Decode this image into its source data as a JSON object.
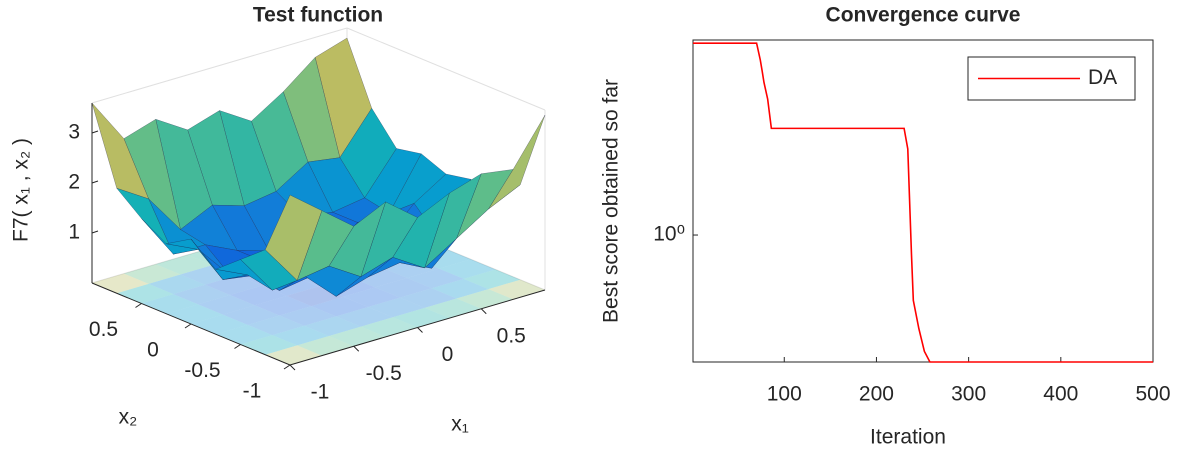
{
  "chart_data": [
    {
      "type": "surface",
      "title": "Test function",
      "zlabel": "F7( x₁ , x₂ )",
      "xlabel": "x₁",
      "ylabel": "x₂",
      "x": [
        -1,
        -0.75,
        -0.5,
        -0.25,
        0,
        0.25,
        0.5,
        0.75,
        1
      ],
      "y": [
        -1,
        -0.75,
        -0.5,
        -0.25,
        0,
        0.25,
        0.5,
        0.75,
        1
      ],
      "z": [
        [
          3.4,
          2.9,
          2.4,
          2.7,
          2.2,
          2.5,
          2.7,
          2.6,
          3.5
        ],
        [
          2.1,
          1.3,
          1.4,
          1.0,
          1.2,
          0.8,
          1.2,
          1.6,
          1.9
        ],
        [
          1.7,
          0.9,
          1.0,
          0.4,
          0.6,
          0.7,
          0.4,
          1.2,
          1.5
        ],
        [
          1.3,
          1.0,
          0.5,
          0.6,
          0.2,
          0.5,
          0.8,
          0.6,
          1.6
        ],
        [
          1.7,
          0.7,
          0.6,
          0.2,
          0.3,
          0.6,
          0.5,
          1.1,
          1.5
        ],
        [
          1.4,
          1.1,
          0.4,
          0.5,
          0.7,
          0.2,
          0.7,
          0.7,
          1.7
        ],
        [
          1.7,
          0.8,
          0.8,
          0.5,
          0.3,
          0.8,
          0.7,
          0.8,
          1.6
        ],
        [
          2.1,
          1.7,
          0.9,
          1.2,
          1.0,
          1.1,
          1.5,
          1.4,
          2.2
        ],
        [
          3.6,
          2.7,
          2.9,
          2.5,
          2.7,
          2.3,
          2.7,
          3.2,
          3.4
        ]
      ],
      "xlim": [
        -1,
        1
      ],
      "ylim": [
        -1,
        1
      ],
      "zlim": [
        0,
        3.6
      ],
      "xticks": [
        -1,
        -0.5,
        0,
        0.5
      ],
      "yticks": [
        -1,
        -0.5,
        0,
        0.5
      ],
      "zticks": [
        1,
        2,
        3
      ],
      "colormap": "parula"
    },
    {
      "type": "line",
      "title": "Convergence curve",
      "xlabel": "Iteration",
      "ylabel": "Best score obtained so far",
      "x": [
        1,
        70,
        74,
        76,
        78,
        82,
        86,
        230,
        234,
        236,
        238,
        240,
        246,
        252,
        258,
        500
      ],
      "series": [
        {
          "name": "DA",
          "color": "#ff0000",
          "values": [
            2.85,
            2.85,
            2.6,
            2.45,
            2.3,
            2.1,
            1.79,
            1.79,
            1.6,
            1.2,
            0.9,
            0.7,
            0.6,
            0.53,
            0.5,
            0.5
          ]
        }
      ],
      "xlim": [
        1,
        500
      ],
      "ylim": [
        0.5,
        2.9
      ],
      "log_y": true,
      "xticks": [
        100,
        200,
        300,
        400,
        500
      ],
      "yticks": [
        {
          "value": 1,
          "label": "10⁰"
        }
      ],
      "legend": "northeast"
    }
  ]
}
